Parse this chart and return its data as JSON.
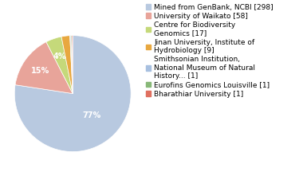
{
  "labels": [
    "Mined from GenBank, NCBI [298]",
    "University of Waikato [58]",
    "Centre for Biodiversity\nGenomics [17]",
    "Jinan University, Institute of\nHydrobiology [9]",
    "Smithsonian Institution,\nNational Museum of Natural\nHistory... [1]",
    "Eurofins Genomics Louisville [1]",
    "Bharathiar University [1]"
  ],
  "values": [
    298,
    58,
    17,
    9,
    1,
    1,
    1
  ],
  "colors": [
    "#b8c9e0",
    "#e8a49a",
    "#c5d97a",
    "#e8a840",
    "#a8c0e0",
    "#88b878",
    "#e07060"
  ],
  "pct_labels": [
    "77%",
    "15%",
    "4%",
    "",
    "",
    "",
    ""
  ],
  "background_color": "#ffffff",
  "fontsize": 7,
  "legend_fontsize": 6.5
}
